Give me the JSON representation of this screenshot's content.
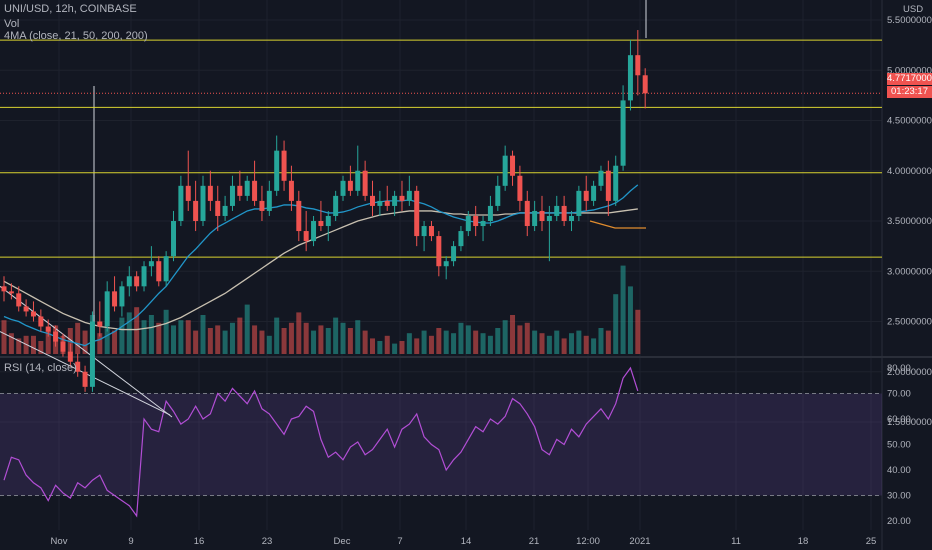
{
  "legend": {
    "symbol": "UNI/USD, 12h, COINBASE",
    "vol": "Vol",
    "ma": "4MA (close, 21, 50, 200, 200)",
    "rsi": "RSI (14, close)"
  },
  "price_axis": {
    "currency": "USD",
    "ticks": [
      "5.50000000",
      "5.00000000",
      "4.50000000",
      "4.00000000",
      "3.50000000",
      "3.00000000",
      "2.50000000",
      "2.00000000",
      "1.50000000"
    ],
    "last_price": "4.77170000",
    "countdown": "01:23:17"
  },
  "rsi_axis": {
    "ticks": [
      "80.00",
      "70.00",
      "60.00",
      "50.00",
      "40.00",
      "30.00",
      "20.00"
    ]
  },
  "time_axis": {
    "ticks": [
      "Nov",
      "9",
      "16",
      "23",
      "Dec",
      "7",
      "14",
      "21",
      "12:00",
      "2021",
      "11",
      "18",
      "25"
    ]
  },
  "colors": {
    "bg": "#131722",
    "up": "#26a69a",
    "down": "#ef5350",
    "level": "#d9d330",
    "rsi": "#b24ed5",
    "ma1": "#2196c9",
    "ma2": "#c8c0b0",
    "ma3": "#e08c2e"
  },
  "chart_data": {
    "type": "candlestick",
    "price_levels": [
      5.3,
      4.63,
      3.98,
      3.14
    ],
    "rsi_bands": [
      70,
      30
    ],
    "candles": [
      [
        2.85,
        2.95,
        2.7,
        2.8
      ],
      [
        2.8,
        2.88,
        2.72,
        2.78
      ],
      [
        2.78,
        2.85,
        2.6,
        2.65
      ],
      [
        2.65,
        2.72,
        2.55,
        2.6
      ],
      [
        2.6,
        2.7,
        2.5,
        2.55
      ],
      [
        2.55,
        2.62,
        2.4,
        2.45
      ],
      [
        2.45,
        2.52,
        2.35,
        2.4
      ],
      [
        2.4,
        2.46,
        2.25,
        2.3
      ],
      [
        2.3,
        2.38,
        2.15,
        2.2
      ],
      [
        2.2,
        2.28,
        2.05,
        2.1
      ],
      [
        2.1,
        2.18,
        1.95,
        2.0
      ],
      [
        2.0,
        2.06,
        1.8,
        1.85
      ],
      [
        1.85,
        2.6,
        1.8,
        2.5
      ],
      [
        2.5,
        2.7,
        2.35,
        2.45
      ],
      [
        2.45,
        2.9,
        2.4,
        2.8
      ],
      [
        2.8,
        2.95,
        2.6,
        2.65
      ],
      [
        2.65,
        2.9,
        2.55,
        2.85
      ],
      [
        2.85,
        3.05,
        2.75,
        2.95
      ],
      [
        2.95,
        3.0,
        2.8,
        2.85
      ],
      [
        2.85,
        3.1,
        2.8,
        3.05
      ],
      [
        3.05,
        3.25,
        2.95,
        3.1
      ],
      [
        3.1,
        3.15,
        2.85,
        2.9
      ],
      [
        2.9,
        3.2,
        2.85,
        3.15
      ],
      [
        3.15,
        3.6,
        3.1,
        3.5
      ],
      [
        3.5,
        3.95,
        3.45,
        3.85
      ],
      [
        3.85,
        4.2,
        3.6,
        3.7
      ],
      [
        3.7,
        3.9,
        3.4,
        3.5
      ],
      [
        3.5,
        3.95,
        3.45,
        3.85
      ],
      [
        3.85,
        4.0,
        3.6,
        3.7
      ],
      [
        3.7,
        3.85,
        3.4,
        3.55
      ],
      [
        3.55,
        3.75,
        3.5,
        3.65
      ],
      [
        3.65,
        3.95,
        3.6,
        3.85
      ],
      [
        3.85,
        4.0,
        3.7,
        3.75
      ],
      [
        3.75,
        3.95,
        3.7,
        3.9
      ],
      [
        3.9,
        4.1,
        3.65,
        3.7
      ],
      [
        3.7,
        3.85,
        3.5,
        3.6
      ],
      [
        3.6,
        3.9,
        3.55,
        3.8
      ],
      [
        3.8,
        4.35,
        3.75,
        4.2
      ],
      [
        4.2,
        4.3,
        3.8,
        3.9
      ],
      [
        3.9,
        4.05,
        3.6,
        3.7
      ],
      [
        3.7,
        3.8,
        3.3,
        3.4
      ],
      [
        3.4,
        3.6,
        3.2,
        3.3
      ],
      [
        3.3,
        3.55,
        3.25,
        3.5
      ],
      [
        3.5,
        3.7,
        3.4,
        3.45
      ],
      [
        3.45,
        3.6,
        3.3,
        3.55
      ],
      [
        3.55,
        3.8,
        3.5,
        3.75
      ],
      [
        3.75,
        3.95,
        3.7,
        3.9
      ],
      [
        3.9,
        4.05,
        3.75,
        3.8
      ],
      [
        3.8,
        4.25,
        3.75,
        4.0
      ],
      [
        4.0,
        4.1,
        3.7,
        3.75
      ],
      [
        3.75,
        3.9,
        3.55,
        3.65
      ],
      [
        3.65,
        3.8,
        3.55,
        3.7
      ],
      [
        3.7,
        3.85,
        3.6,
        3.65
      ],
      [
        3.65,
        3.8,
        3.55,
        3.75
      ],
      [
        3.75,
        3.9,
        3.6,
        3.7
      ],
      [
        3.7,
        3.95,
        3.65,
        3.8
      ],
      [
        3.8,
        3.85,
        3.25,
        3.35
      ],
      [
        3.35,
        3.5,
        3.2,
        3.45
      ],
      [
        3.45,
        3.5,
        3.3,
        3.35
      ],
      [
        3.35,
        3.4,
        2.95,
        3.05
      ],
      [
        3.05,
        3.15,
        2.92,
        3.1
      ],
      [
        3.1,
        3.3,
        3.05,
        3.25
      ],
      [
        3.25,
        3.45,
        3.2,
        3.4
      ],
      [
        3.4,
        3.6,
        3.35,
        3.55
      ],
      [
        3.55,
        3.65,
        3.35,
        3.45
      ],
      [
        3.45,
        3.55,
        3.3,
        3.5
      ],
      [
        3.5,
        3.75,
        3.45,
        3.65
      ],
      [
        3.65,
        3.95,
        3.6,
        3.85
      ],
      [
        3.85,
        4.25,
        3.8,
        4.15
      ],
      [
        4.15,
        4.2,
        3.85,
        3.95
      ],
      [
        3.95,
        4.05,
        3.6,
        3.7
      ],
      [
        3.7,
        3.8,
        3.35,
        3.45
      ],
      [
        3.45,
        3.7,
        3.4,
        3.6
      ],
      [
        3.6,
        3.75,
        3.4,
        3.5
      ],
      [
        3.5,
        3.65,
        3.1,
        3.55
      ],
      [
        3.55,
        3.75,
        3.5,
        3.65
      ],
      [
        3.65,
        3.75,
        3.45,
        3.5
      ],
      [
        3.5,
        3.6,
        3.4,
        3.55
      ],
      [
        3.55,
        3.85,
        3.5,
        3.8
      ],
      [
        3.8,
        3.95,
        3.6,
        3.7
      ],
      [
        3.7,
        3.9,
        3.65,
        3.85
      ],
      [
        3.85,
        4.05,
        3.8,
        4.0
      ],
      [
        4.0,
        4.1,
        3.55,
        3.7
      ],
      [
        3.7,
        4.15,
        3.65,
        4.05
      ],
      [
        4.05,
        4.85,
        4.0,
        4.7
      ],
      [
        4.7,
        5.3,
        4.6,
        5.15
      ],
      [
        5.15,
        5.4,
        4.75,
        4.95
      ],
      [
        4.95,
        5.02,
        4.62,
        4.77
      ]
    ],
    "volumes": [
      13,
      8,
      6,
      7,
      7,
      5,
      9,
      11,
      7,
      10,
      12,
      9,
      15,
      8,
      10,
      9,
      14,
      16,
      18,
      13,
      15,
      12,
      17,
      11,
      13,
      13,
      9,
      15,
      10,
      11,
      9,
      12,
      14,
      19,
      11,
      9,
      7,
      14,
      10,
      12,
      16,
      12,
      9,
      11,
      10,
      14,
      12,
      10,
      13,
      9,
      6,
      5,
      7,
      4,
      5,
      8,
      6,
      9,
      7,
      10,
      9,
      8,
      12,
      11,
      9,
      8,
      7,
      10,
      13,
      15,
      11,
      12,
      9,
      8,
      7,
      9,
      6,
      8,
      9,
      7,
      6,
      10,
      9,
      23,
      34,
      26,
      17
    ],
    "ma21": [
      2.55,
      2.52,
      2.5,
      2.46,
      2.43,
      2.4,
      2.38,
      2.35,
      2.32,
      2.3,
      2.28,
      2.26,
      2.3,
      2.32,
      2.36,
      2.4,
      2.45,
      2.5,
      2.55,
      2.62,
      2.7,
      2.78,
      2.85,
      2.95,
      3.05,
      3.15,
      3.22,
      3.3,
      3.38,
      3.44,
      3.48,
      3.52,
      3.56,
      3.6,
      3.62,
      3.62,
      3.63,
      3.64,
      3.66,
      3.66,
      3.65,
      3.63,
      3.62,
      3.6,
      3.58,
      3.58,
      3.59,
      3.61,
      3.64,
      3.66,
      3.68,
      3.69,
      3.7,
      3.7,
      3.7,
      3.71,
      3.69,
      3.67,
      3.64,
      3.6,
      3.57,
      3.54,
      3.52,
      3.5,
      3.49,
      3.48,
      3.48,
      3.5,
      3.53,
      3.56,
      3.58,
      3.58,
      3.58,
      3.58,
      3.58,
      3.58,
      3.58,
      3.58,
      3.59,
      3.6,
      3.61,
      3.63,
      3.65,
      3.68,
      3.73,
      3.8,
      3.86
    ],
    "ma50": [
      2.9,
      2.86,
      2.82,
      2.78,
      2.74,
      2.7,
      2.66,
      2.62,
      2.58,
      2.55,
      2.52,
      2.49,
      2.47,
      2.45,
      2.44,
      2.43,
      2.42,
      2.42,
      2.42,
      2.43,
      2.44,
      2.46,
      2.48,
      2.51,
      2.54,
      2.58,
      2.62,
      2.66,
      2.7,
      2.74,
      2.78,
      2.83,
      2.88,
      2.93,
      2.98,
      3.03,
      3.08,
      3.13,
      3.18,
      3.22,
      3.26,
      3.29,
      3.32,
      3.35,
      3.38,
      3.41,
      3.44,
      3.47,
      3.5,
      3.52,
      3.54,
      3.56,
      3.57,
      3.58,
      3.59,
      3.6,
      3.6,
      3.6,
      3.6,
      3.59,
      3.58,
      3.57,
      3.57,
      3.56,
      3.56,
      3.56,
      3.56,
      3.56,
      3.57,
      3.57,
      3.58,
      3.58,
      3.58,
      3.58,
      3.58,
      3.58,
      3.58,
      3.58,
      3.58,
      3.58,
      3.58,
      3.58,
      3.58,
      3.59,
      3.6,
      3.61,
      3.62
    ],
    "rsi": [
      36,
      45,
      44,
      38,
      35,
      33,
      28,
      34,
      31,
      29,
      35,
      33,
      36,
      38,
      32,
      30,
      28,
      26,
      22,
      60,
      56,
      55,
      67,
      63,
      58,
      60,
      65,
      60,
      62,
      70,
      67,
      72,
      69,
      66,
      71,
      64,
      62,
      58,
      54,
      60,
      61,
      65,
      63,
      52,
      45,
      47,
      44,
      49,
      51,
      46,
      48,
      52,
      56,
      49,
      56,
      58,
      62,
      53,
      50,
      48,
      40,
      44,
      47,
      52,
      57,
      55,
      60,
      58,
      61,
      68,
      66,
      62,
      57,
      48,
      46,
      52,
      50,
      56,
      53,
      58,
      61,
      64,
      60,
      66,
      76,
      80,
      71
    ]
  }
}
